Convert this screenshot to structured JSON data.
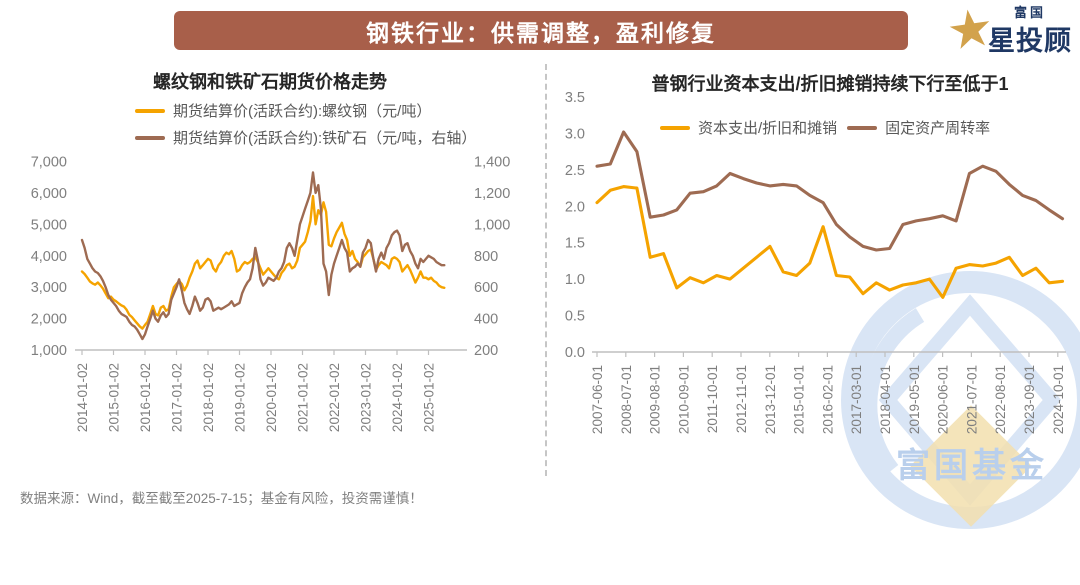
{
  "banner": {
    "title": "钢铁行业：供需调整，盈利修复"
  },
  "logo": {
    "brand_small": "富国",
    "brand_large": "星投顾",
    "star_icon": "gold-star"
  },
  "footer": {
    "text": "数据来源：Wind，截至截至2025-7-15；基金有风险，投资需谨慎！"
  },
  "watermark": {
    "text": "富国基金"
  },
  "colors": {
    "banner_bg": "#A85F4A",
    "orange": "#F5A300",
    "brown": "#9E6B52",
    "axis": "#BFBFBF",
    "tick_label": "#7F7F7F",
    "navy": "#1F3864",
    "watermark_blue": "#D9E5F5",
    "watermark_gold": "#F2DFAE"
  },
  "chart_data": [
    {
      "type": "line",
      "title": "螺纹钢和铁矿石期货价格走势",
      "x_start": "2014-01",
      "freq": "monthly",
      "grid": false,
      "legend_position": "top",
      "xticks": [
        "2014-01-02",
        "2015-01-02",
        "2016-01-02",
        "2017-01-02",
        "2018-01-02",
        "2019-01-02",
        "2020-01-02",
        "2021-01-02",
        "2022-01-02",
        "2023-01-02",
        "2024-01-02",
        "2025-01-02"
      ],
      "yticks_left": [
        "7,000",
        "6,000",
        "5,000",
        "4,000",
        "3,000",
        "2,000",
        "1,000"
      ],
      "yticks_right": [
        "1,400",
        "1,200",
        "1,000",
        "800",
        "600",
        "400",
        "200"
      ],
      "ylim_left": [
        1000,
        7000
      ],
      "ylim_right": [
        200,
        1400
      ],
      "series": [
        {
          "name": "期货结算价(活跃合约):螺纹钢（元/吨）",
          "axis": "left",
          "color_key": "orange",
          "values": [
            3500,
            3420,
            3300,
            3180,
            3120,
            3080,
            3150,
            3060,
            2950,
            2800,
            2650,
            2700,
            2600,
            2550,
            2480,
            2420,
            2380,
            2280,
            2120,
            2050,
            1950,
            1850,
            1750,
            1680,
            1800,
            1900,
            2150,
            2400,
            2150,
            2100,
            2350,
            2400,
            2250,
            2300,
            2700,
            3000,
            3100,
            3200,
            3100,
            2900,
            3050,
            3300,
            3500,
            3750,
            3850,
            3600,
            3700,
            3800,
            3900,
            3850,
            3600,
            3500,
            3700,
            3800,
            4000,
            4100,
            4050,
            4150,
            3900,
            3500,
            3550,
            3700,
            3800,
            3750,
            3800,
            3900,
            3950,
            3800,
            3600,
            3400,
            3500,
            3600,
            3500,
            3400,
            3300,
            3250,
            3450,
            3550,
            3700,
            3750,
            3600,
            3650,
            3850,
            4250,
            4350,
            4450,
            4750,
            5100,
            5900,
            5000,
            5450,
            5300,
            5700,
            5400,
            4350,
            4300,
            4550,
            4750,
            4900,
            5050,
            4700,
            4500,
            4000,
            4150,
            3900,
            3800,
            3650,
            3950,
            4050,
            4150,
            4200,
            3900,
            3550,
            3700,
            3800,
            3750,
            3700,
            3600,
            3900,
            3950,
            3900,
            3800,
            3500,
            3600,
            3700,
            3550,
            3350,
            3150,
            3300,
            3500,
            3300,
            3300,
            3250,
            3300,
            3200,
            3150,
            3050,
            3000,
            2980
          ]
        },
        {
          "name": "期货结算价(活跃合约):铁矿石（元/吨，右轴）",
          "axis": "right",
          "color_key": "brown",
          "values": [
            900,
            850,
            780,
            750,
            720,
            700,
            690,
            670,
            640,
            600,
            550,
            520,
            500,
            480,
            450,
            430,
            420,
            410,
            380,
            360,
            350,
            330,
            300,
            270,
            300,
            350,
            400,
            450,
            400,
            380,
            420,
            440,
            410,
            430,
            520,
            560,
            600,
            650,
            580,
            500,
            460,
            430,
            480,
            540,
            500,
            450,
            470,
            520,
            530,
            510,
            450,
            460,
            470,
            460,
            470,
            480,
            490,
            510,
            480,
            490,
            500,
            560,
            600,
            630,
            650,
            720,
            850,
            770,
            650,
            610,
            630,
            660,
            650,
            640,
            660,
            700,
            720,
            760,
            850,
            880,
            850,
            800,
            900,
            1000,
            1050,
            1100,
            1150,
            1200,
            1330,
            1200,
            1250,
            1100,
            750,
            700,
            550,
            680,
            750,
            800,
            850,
            900,
            850,
            820,
            700,
            720,
            730,
            750,
            730,
            820,
            850,
            900,
            880,
            780,
            700,
            780,
            820,
            780,
            850,
            880,
            930,
            950,
            960,
            930,
            830,
            870,
            880,
            830,
            800,
            750,
            720,
            780,
            760,
            780,
            800,
            790,
            780,
            760,
            750,
            740,
            740
          ]
        }
      ]
    },
    {
      "type": "line",
      "title": "普钢行业资本支出/折旧摊销持续下行至低于1",
      "x_start": "2007-06",
      "freq": "semiannual",
      "grid": false,
      "legend_position": "top",
      "xticks": [
        "2007-06-01",
        "2008-07-01",
        "2009-08-01",
        "2010-09-01",
        "2011-10-01",
        "2012-11-01",
        "2013-12-01",
        "2015-01-01",
        "2016-02-01",
        "2017-03-01",
        "2018-04-01",
        "2019-05-01",
        "2020-06-01",
        "2021-07-01",
        "2022-08-01",
        "2023-09-01",
        "2024-10-01"
      ],
      "yticks": [
        "3.5",
        "3.0",
        "2.5",
        "2.0",
        "1.5",
        "1.0",
        "0.5",
        "0.0"
      ],
      "ylim": [
        0,
        3.5
      ],
      "series": [
        {
          "name": "资本支出/折旧和摊销",
          "color_key": "orange",
          "values": [
            2.05,
            2.22,
            2.27,
            2.25,
            1.3,
            1.35,
            0.88,
            1.02,
            0.95,
            1.05,
            1.0,
            1.15,
            1.3,
            1.45,
            1.1,
            1.05,
            1.22,
            1.72,
            1.05,
            1.03,
            0.8,
            0.95,
            0.85,
            0.92,
            0.95,
            1.0,
            0.75,
            1.15,
            1.2,
            1.18,
            1.22,
            1.3,
            1.05,
            1.15,
            0.95,
            0.97
          ]
        },
        {
          "name": "固定资产周转率",
          "color_key": "brown",
          "values": [
            2.55,
            2.58,
            3.02,
            2.75,
            1.85,
            1.88,
            1.95,
            2.18,
            2.2,
            2.28,
            2.45,
            2.38,
            2.32,
            2.28,
            2.3,
            2.28,
            2.15,
            2.05,
            1.75,
            1.58,
            1.45,
            1.4,
            1.42,
            1.75,
            1.8,
            1.83,
            1.87,
            1.8,
            2.45,
            2.55,
            2.48,
            2.3,
            2.15,
            2.08,
            1.95,
            1.83
          ]
        }
      ]
    }
  ]
}
